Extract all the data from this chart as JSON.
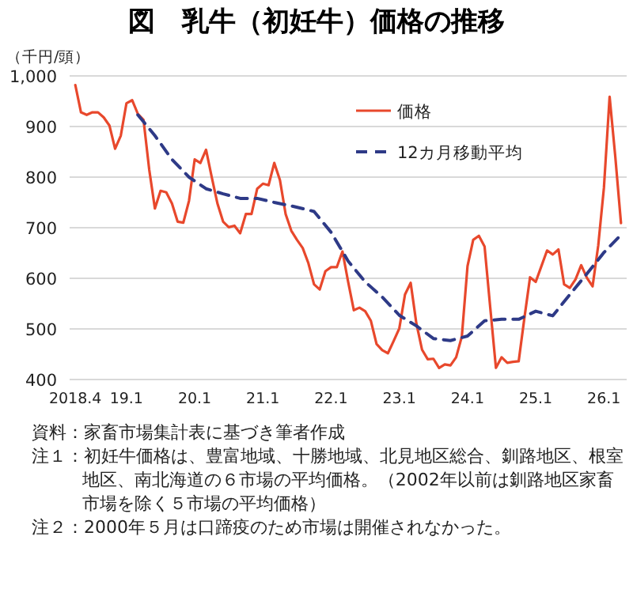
{
  "chart_data": {
    "type": "line",
    "title": "図　乳牛（初妊牛）価格の推移",
    "ylabel": "（千円/頭）",
    "x": [
      "2018-04",
      "2018-05",
      "2018-06",
      "2018-07",
      "2018-08",
      "2018-09",
      "2018-10",
      "2018-11",
      "2018-12",
      "2019-01",
      "2019-02",
      "2019-03",
      "2019-04",
      "2019-05",
      "2019-06",
      "2019-07",
      "2019-08",
      "2019-09",
      "2019-10",
      "2019-11",
      "2019-12",
      "2020-01",
      "2020-02",
      "2020-03",
      "2020-04",
      "2020-05",
      "2020-06",
      "2020-07",
      "2020-08",
      "2020-09",
      "2020-10",
      "2020-11",
      "2020-12",
      "2021-01",
      "2021-02",
      "2021-03",
      "2021-04",
      "2021-05",
      "2021-06",
      "2021-07",
      "2021-08",
      "2021-09",
      "2021-10",
      "2021-11",
      "2021-12",
      "2022-01",
      "2022-02",
      "2022-03",
      "2022-04",
      "2022-05",
      "2022-06",
      "2022-07",
      "2022-08",
      "2022-09",
      "2022-10",
      "2022-11",
      "2022-12",
      "2023-01",
      "2023-02",
      "2023-03",
      "2023-04",
      "2023-05",
      "2023-06",
      "2023-07",
      "2023-08",
      "2023-09",
      "2023-10",
      "2023-11",
      "2023-12",
      "2024-01",
      "2024-02",
      "2024-03",
      "2024-04",
      "2024-05",
      "2024-06",
      "2024-07",
      "2024-08",
      "2024-09",
      "2024-10",
      "2024-11",
      "2024-12",
      "2025-01",
      "2025-02",
      "2025-03",
      "2025-04",
      "2025-05",
      "2025-06",
      "2025-07",
      "2025-08",
      "2025-09",
      "2025-10",
      "2025-11",
      "2025-12",
      "2026-01",
      "2026-02",
      "2026-03",
      "2026-04"
    ],
    "series": [
      {
        "name": "価格",
        "color": "#e8482c",
        "line_style": "solid",
        "values": [
          982,
          928,
          923,
          928,
          928,
          918,
          902,
          856,
          882,
          946,
          952,
          925,
          913,
          815,
          738,
          773,
          770,
          748,
          712,
          710,
          753,
          835,
          828,
          854,
          800,
          748,
          712,
          701,
          704,
          689,
          727,
          727,
          777,
          787,
          784,
          828,
          794,
          727,
          694,
          676,
          660,
          630,
          588,
          578,
          614,
          622,
          622,
          653,
          593,
          537,
          542,
          535,
          516,
          470,
          458,
          452,
          476,
          501,
          568,
          591,
          511,
          459,
          440,
          441,
          423,
          430,
          428,
          444,
          485,
          624,
          676,
          684,
          663,
          542,
          423,
          444,
          433,
          435,
          436,
          521,
          602,
          593,
          624,
          655,
          647,
          657,
          588,
          581,
          598,
          626,
          601,
          584,
          665,
          779,
          959,
          840,
          709
        ]
      },
      {
        "name": "12カ月移動平均",
        "color": "#2e3a87",
        "line_style": "dashed",
        "x": [
          "2019-03",
          "2019-06",
          "2019-09",
          "2019-12",
          "2020-03",
          "2020-06",
          "2020-09",
          "2020-12",
          "2021-03",
          "2021-06",
          "2021-09",
          "2021-10",
          "2022-01",
          "2022-04",
          "2022-07",
          "2022-10",
          "2023-01",
          "2023-04",
          "2023-07",
          "2023-10",
          "2024-01",
          "2024-04",
          "2024-07",
          "2024-10",
          "2025-01",
          "2025-04",
          "2025-07",
          "2025-10",
          "2026-01",
          "2026-04"
        ],
        "values": [
          923,
          882,
          835,
          800,
          777,
          767,
          758,
          758,
          750,
          743,
          735,
          732,
          691,
          634,
          593,
          563,
          527,
          506,
          481,
          477,
          486,
          516,
          519,
          519,
          535,
          526,
          568,
          609,
          651,
          686
        ]
      }
    ],
    "xlim": [
      "2018-03",
      "2026-05"
    ],
    "xticks": [
      {
        "value": "2018-04",
        "label": "2018.4"
      },
      {
        "value": "2019-01",
        "label": "19.1"
      },
      {
        "value": "2020-01",
        "label": "20.1"
      },
      {
        "value": "2021-01",
        "label": "21.1"
      },
      {
        "value": "2022-01",
        "label": "22.1"
      },
      {
        "value": "2023-01",
        "label": "23.1"
      },
      {
        "value": "2024-01",
        "label": "24.1"
      },
      {
        "value": "2025-01",
        "label": "25.1"
      },
      {
        "value": "2026-01",
        "label": "26.1"
      }
    ],
    "ylim": [
      400,
      1000
    ],
    "yticks": [
      400,
      500,
      600,
      700,
      800,
      900,
      {
        "value": 1000,
        "label": "1,000"
      }
    ],
    "grid": "y",
    "legend": "top right",
    "annotations": [
      "資料：家畜市場集計表に基づき筆者作成",
      "注１：初妊牛価格は、豊富地域、十勝地域、北見地区総合、釧路地区、根室地区、南北海道の６市場の平均価格。（2002年以前は釧路地区家畜市場を除く５市場の平均価格）",
      "注２：2000年５月は口蹄疫のため市場は開催されなかった。"
    ]
  }
}
